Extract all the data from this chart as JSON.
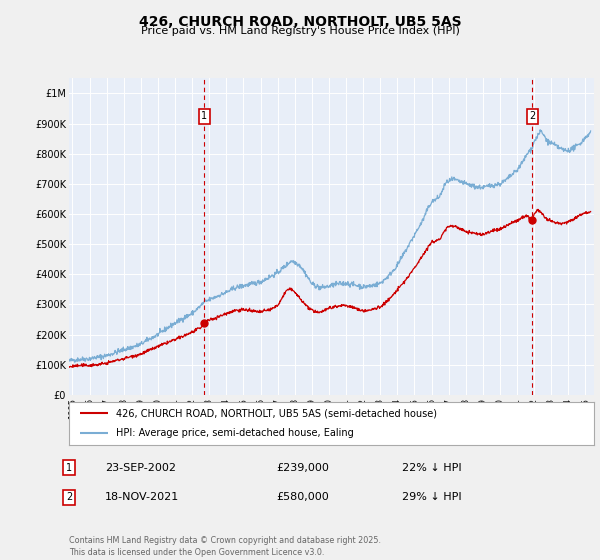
{
  "title": "426, CHURCH ROAD, NORTHOLT, UB5 5AS",
  "subtitle": "Price paid vs. HM Land Registry's House Price Index (HPI)",
  "background_color": "#f0f0f0",
  "plot_bg_color": "#e8eef8",
  "grid_color": "#ffffff",
  "hpi_color": "#7aadd4",
  "price_color": "#cc0000",
  "marker1_date_x": 2002.72,
  "marker2_date_x": 2021.88,
  "marker1_price": 239000,
  "marker2_price": 580000,
  "legend_line1": "426, CHURCH ROAD, NORTHOLT, UB5 5AS (semi-detached house)",
  "legend_line2": "HPI: Average price, semi-detached house, Ealing",
  "footer": "Contains HM Land Registry data © Crown copyright and database right 2025.\nThis data is licensed under the Open Government Licence v3.0.",
  "ylim": [
    0,
    1050000
  ],
  "xlim_start": 1994.8,
  "xlim_end": 2025.5,
  "yticks": [
    0,
    100000,
    200000,
    300000,
    400000,
    500000,
    600000,
    700000,
    800000,
    900000,
    1000000
  ],
  "ytick_labels": [
    "£0",
    "£100K",
    "£200K",
    "£300K",
    "£400K",
    "£500K",
    "£600K",
    "£700K",
    "£800K",
    "£900K",
    "£1M"
  ],
  "xticks": [
    1995,
    1996,
    1997,
    1998,
    1999,
    2000,
    2001,
    2002,
    2003,
    2004,
    2005,
    2006,
    2007,
    2008,
    2009,
    2010,
    2011,
    2012,
    2013,
    2014,
    2015,
    2016,
    2017,
    2018,
    2019,
    2020,
    2021,
    2022,
    2023,
    2024,
    2025
  ]
}
